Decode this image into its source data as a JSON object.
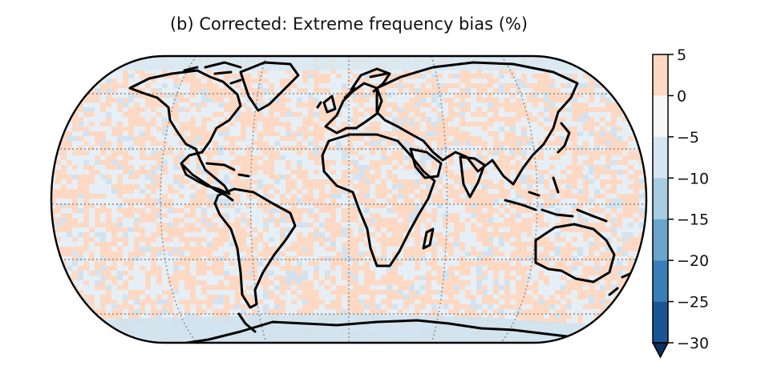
{
  "title": "(b) Corrected: Extreme frequency bias (%)",
  "colorbar": {
    "ticks": [
      "5",
      "0",
      "−5",
      "−10",
      "−15",
      "−20",
      "−25",
      "−30"
    ],
    "levels": [
      {
        "from": 0,
        "to": 5,
        "color": "#fdd9c4"
      },
      {
        "from": -5,
        "to": 0,
        "color": "#f7f7f7"
      },
      {
        "from": -10,
        "to": -5,
        "color": "#d6e6f1"
      },
      {
        "from": -15,
        "to": -10,
        "color": "#a8cce2"
      },
      {
        "from": -20,
        "to": -15,
        "color": "#6aa6cc"
      },
      {
        "from": -25,
        "to": -20,
        "color": "#3a7eb8"
      },
      {
        "from": -30,
        "to": -25,
        "color": "#1b5593"
      }
    ],
    "extend": "min",
    "under_color": "#0c2f5e"
  },
  "map": {
    "projection": "Robinson",
    "dominant_values": [
      "0 to 5",
      "-5 to 0",
      "-10 to -5"
    ],
    "colors": {
      "positive": "#fdd9c4",
      "neutral": "#e6eff5",
      "negative": "#d2e3ef",
      "coast": "#000000",
      "grid": "#8a8a8a"
    }
  }
}
